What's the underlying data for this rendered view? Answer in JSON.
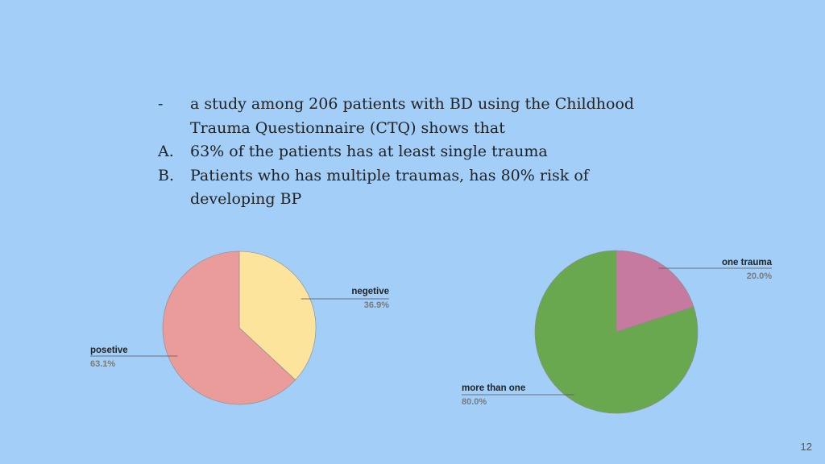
{
  "slide": {
    "page_number": "12",
    "lines": [
      {
        "marker": "-",
        "text": "a study among 206 patients with BD using the Childhood"
      },
      {
        "marker": "",
        "text": "Trauma Questionnaire (CTQ) shows that"
      },
      {
        "marker": "A.",
        "text": "63% of the patients has at least single trauma"
      },
      {
        "marker": "B.",
        "text": "Patients who has multiple traumas, has 80% risk of"
      },
      {
        "marker": "",
        "text": "developing BP"
      }
    ]
  },
  "chart_data": [
    {
      "type": "pie",
      "labels": [
        "negetive",
        "posetive"
      ],
      "values": [
        36.9,
        63.1
      ],
      "value_labels": [
        "36.9%",
        "63.1%"
      ],
      "colors": [
        "#fde49c",
        "#ea9c9b"
      ]
    },
    {
      "type": "pie",
      "labels": [
        "one trauma",
        "more than one"
      ],
      "values": [
        20.0,
        80.0
      ],
      "value_labels": [
        "20.0%",
        "80.0%"
      ],
      "colors": [
        "#c67a9f",
        "#6aa84f"
      ]
    }
  ]
}
